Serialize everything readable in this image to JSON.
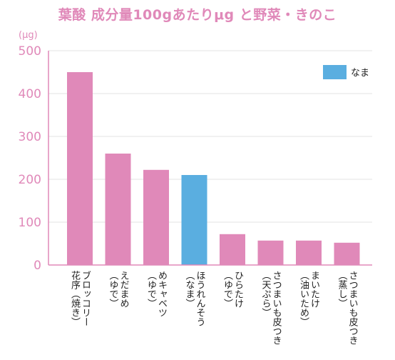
{
  "title": "葉酸 成分量100gあたりμg と野菜・きのこ",
  "colors": {
    "title": "#e089b9",
    "default_bar": "#e089b9",
    "raw_bar": "#5aaee0",
    "axis": "#e089b9",
    "grid": "#e3e3e3",
    "label": "#222222"
  },
  "chart_data": {
    "type": "bar",
    "title": "葉酸 成分量100gあたりμg と野菜・きのこ",
    "ylabel": "(μg)",
    "xlabel": "",
    "ylim": [
      0,
      500
    ],
    "yticks": [
      0,
      100,
      200,
      300,
      400,
      500
    ],
    "grid": true,
    "legend": {
      "position": "top-right",
      "entries": [
        {
          "label": "なま",
          "color": "#5aaee0"
        }
      ]
    },
    "categories": [
      {
        "lines": [
          "ブロッコリー",
          "花序（焼き）"
        ]
      },
      {
        "lines": [
          "えだまめ",
          "（ゆで）"
        ]
      },
      {
        "lines": [
          "めキャベツ",
          "（ゆで）"
        ]
      },
      {
        "lines": [
          "ほうれんそう",
          "（なま）"
        ]
      },
      {
        "lines": [
          "ひらたけ",
          "（ゆで）"
        ]
      },
      {
        "lines": [
          "さつまいも皮つき",
          "（天ぷら）"
        ]
      },
      {
        "lines": [
          "まいたけ",
          "（油いため）"
        ]
      },
      {
        "lines": [
          "さつまいも皮つき",
          "（蒸し）"
        ]
      }
    ],
    "values": [
      450,
      260,
      222,
      210,
      72,
      57,
      57,
      52
    ],
    "raw": [
      false,
      false,
      false,
      true,
      false,
      false,
      false,
      false
    ]
  }
}
